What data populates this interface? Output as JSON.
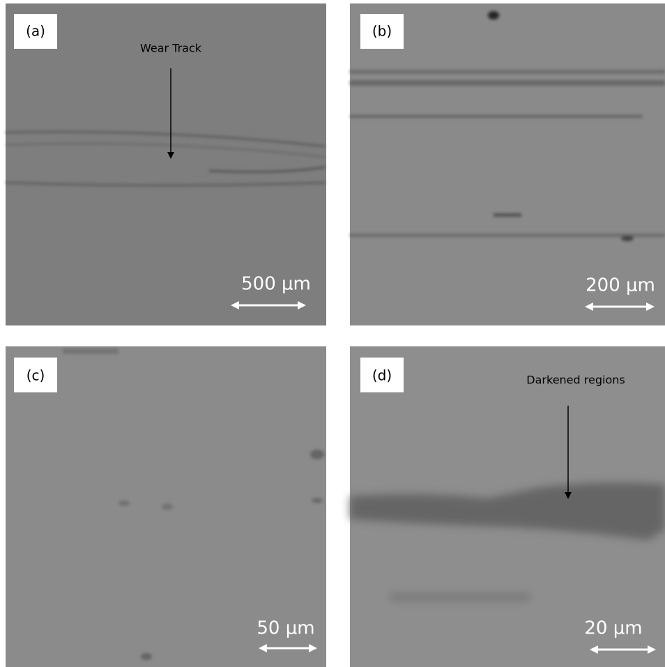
{
  "panels": [
    {
      "label": "(a)",
      "annotation": "Wear Track",
      "scale_bar": "500 μm"
    },
    {
      "label": "(b)",
      "scale_bar": "200 μm"
    },
    {
      "label": "(c)",
      "scale_bar": "50 μm"
    },
    {
      "label": "(d)",
      "annotation": "Darkened regions",
      "scale_bar": "20 μm"
    }
  ]
}
